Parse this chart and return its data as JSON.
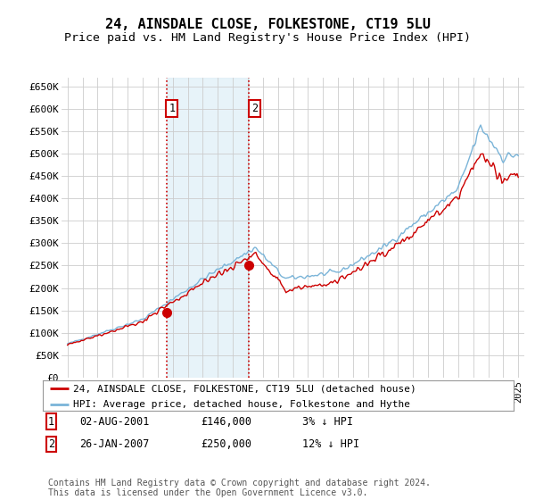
{
  "title": "24, AINSDALE CLOSE, FOLKESTONE, CT19 5LU",
  "subtitle": "Price paid vs. HM Land Registry's House Price Index (HPI)",
  "ylim": [
    0,
    670000
  ],
  "yticks": [
    0,
    50000,
    100000,
    150000,
    200000,
    250000,
    300000,
    350000,
    400000,
    450000,
    500000,
    550000,
    600000,
    650000
  ],
  "ytick_labels": [
    "£0",
    "£50K",
    "£100K",
    "£150K",
    "£200K",
    "£250K",
    "£300K",
    "£350K",
    "£400K",
    "£450K",
    "£500K",
    "£550K",
    "£600K",
    "£650K"
  ],
  "hpi_color": "#7ab4d8",
  "price_color": "#cc0000",
  "background_color": "#ffffff",
  "plot_bg_color": "#ffffff",
  "grid_color": "#cccccc",
  "sale1_date": 2001.58,
  "sale1_price": 146000,
  "sale2_date": 2007.07,
  "sale2_price": 250000,
  "vline_color": "#cc0000",
  "shade_color": "#ddeef7",
  "legend_label_red": "24, AINSDALE CLOSE, FOLKESTONE, CT19 5LU (detached house)",
  "legend_label_blue": "HPI: Average price, detached house, Folkestone and Hythe",
  "footnote": "Contains HM Land Registry data © Crown copyright and database right 2024.\nThis data is licensed under the Open Government Licence v3.0.",
  "title_fontsize": 11,
  "subtitle_fontsize": 9.5
}
